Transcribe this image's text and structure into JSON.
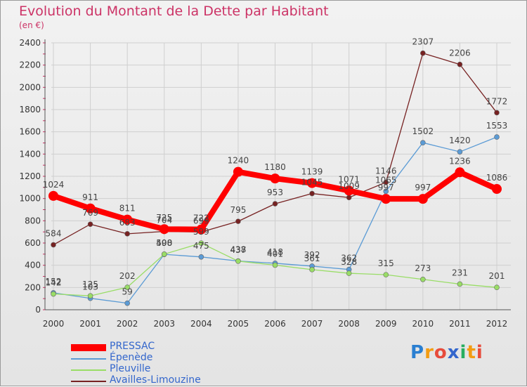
{
  "title": "Evolution du Montant de la Dette par Habitant",
  "subtitle": "(en €)",
  "logo": {
    "text": "Proxiti",
    "letters": [
      "P",
      "r",
      "o",
      "x",
      "i",
      "t",
      "i"
    ],
    "colors": [
      "#2a7fd1",
      "#f39c12",
      "#e74c3c",
      "#3366cc",
      "#27ae60",
      "#f39c12",
      "#e74c3c"
    ]
  },
  "chart_data": {
    "type": "line",
    "title": "Evolution du Montant de la Dette par Habitant",
    "subtitle": "(en €)",
    "xlabel": "",
    "ylabel": "",
    "x": [
      "2000",
      "2001",
      "2002",
      "2003",
      "2004",
      "2005",
      "2006",
      "2007",
      "2008",
      "2009",
      "2010",
      "2011",
      "2012"
    ],
    "ylim": [
      0,
      2400
    ],
    "yticks": [
      0,
      200,
      400,
      600,
      800,
      1000,
      1200,
      1400,
      1600,
      1800,
      2000,
      2200,
      2400
    ],
    "grid": true,
    "legend": "bottom-left",
    "series": [
      {
        "name": "PRESSAC",
        "color": "#ff0000",
        "values": [
          1024,
          911,
          811,
          725,
          722,
          1240,
          1180,
          1139,
          1071,
          997,
          997,
          1236,
          1086
        ]
      },
      {
        "name": "Épenède",
        "color": "#5b9bd5",
        "values": [
          152,
          103,
          59,
          498,
          475,
          438,
          418,
          392,
          362,
          1065,
          1502,
          1420,
          1553
        ]
      },
      {
        "name": "Pleuville",
        "color": "#99dd66",
        "values": [
          142,
          125,
          202,
          500,
          599,
          437,
          401,
          361,
          328,
          315,
          273,
          231,
          201
        ]
      },
      {
        "name": "Availles-Limouzine",
        "color": "#772222",
        "values": [
          584,
          769,
          683,
          704,
          699,
          795,
          953,
          1045,
          1009,
          1146,
          2307,
          2206,
          1772
        ]
      }
    ]
  }
}
